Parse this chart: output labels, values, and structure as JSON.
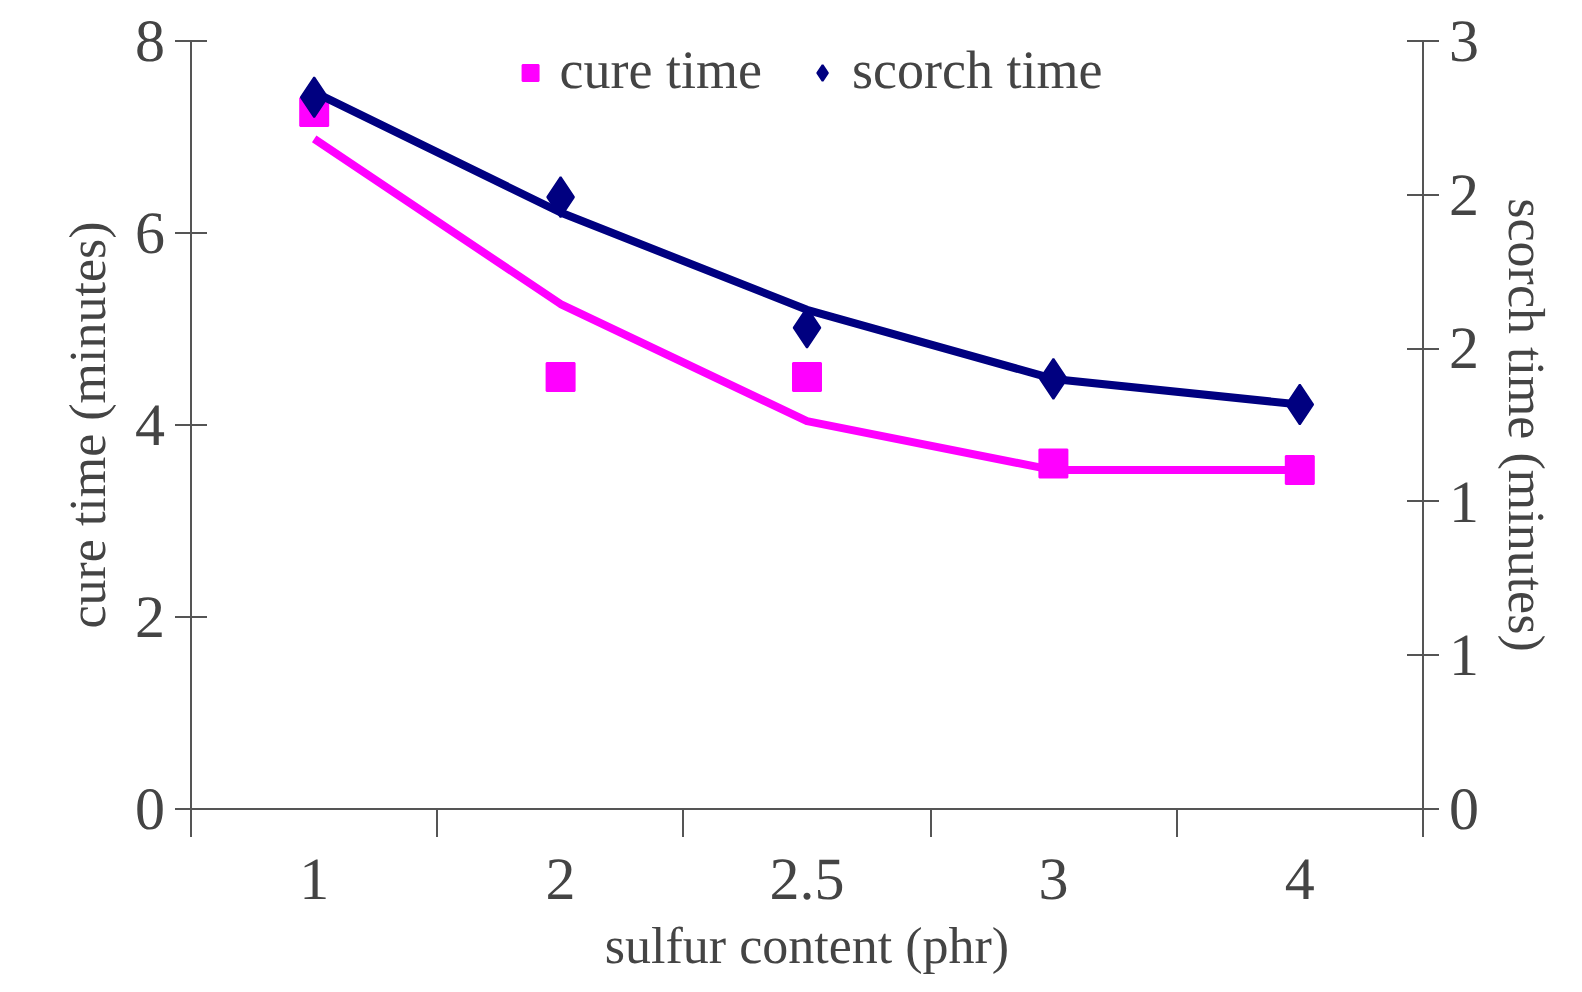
{
  "chart_data": {
    "type": "scatter",
    "xlabel": "sulfur content (phr)",
    "ylabel": "cure time (minutes)",
    "y2label": "scorch time (minutes)",
    "categories": [
      "1",
      "2",
      "2.5",
      "3",
      "4"
    ],
    "series": [
      {
        "name": "cure time",
        "color": "#ff00ff",
        "marker": "square",
        "values": [
          7.26,
          4.5,
          4.5,
          3.6,
          3.53
        ]
      },
      {
        "name": "scorch time",
        "color": "#000080",
        "marker": "diamond",
        "axis": "y2",
        "values": [
          2.78,
          2.39,
          1.88,
          1.68,
          1.58
        ]
      },
      {
        "type": "line",
        "color": "#ff00ff",
        "values": [
          6.98,
          5.26,
          4.04,
          3.53,
          3.53
        ]
      },
      {
        "type": "line",
        "color": "#000080",
        "axis": "y2",
        "values": [
          2.8,
          2.33,
          1.95,
          1.68,
          1.58
        ]
      }
    ],
    "ylim": [
      0,
      8
    ],
    "yticks": [
      0,
      2,
      4,
      6,
      8
    ],
    "y2lim": [
      0,
      3
    ],
    "y2ticks": [
      0,
      {
        "value": 0.6,
        "label": "1"
      },
      {
        "value": 1.2,
        "label": "1"
      },
      {
        "value": 1.8,
        "label": "2"
      },
      {
        "value": 2.4,
        "label": "2"
      },
      3
    ],
    "grid": false,
    "legend": "top"
  }
}
